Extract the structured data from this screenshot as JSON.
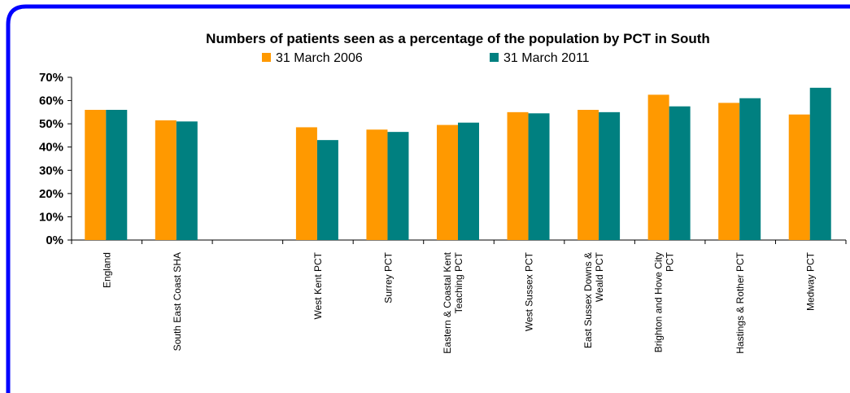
{
  "chart_data": {
    "type": "bar",
    "title": "Numbers of patients seen as a percentage of the population by PCT in South",
    "categories": [
      "England",
      "South East Coast SHA",
      null,
      "West Kent PCT",
      "Surrey PCT",
      "Eastern & Coastal Kent\nTeaching PCT",
      "West Sussex PCT",
      "East Sussex Downs &\nWeald PCT",
      "Brighton and Hove City\nPCT",
      "Hastings & Rother PCT",
      "Medway PCT"
    ],
    "series": [
      {
        "name": "31 March 2006",
        "color": "#ff9900",
        "values": [
          56,
          51.5,
          null,
          48.5,
          47.5,
          49.5,
          55,
          56,
          62.5,
          59,
          54
        ]
      },
      {
        "name": "31 March 2011",
        "color": "#008080",
        "values": [
          56,
          51,
          null,
          43,
          46.5,
          50.5,
          54.5,
          55,
          57.5,
          61,
          65.5
        ]
      }
    ],
    "ylim": [
      0,
      70
    ],
    "yticks": [
      {
        "value": 0,
        "label": "0%"
      },
      {
        "value": 10,
        "label": "10%"
      },
      {
        "value": 20,
        "label": "20%"
      },
      {
        "value": 30,
        "label": "30%"
      },
      {
        "value": 40,
        "label": "40%"
      },
      {
        "value": 50,
        "label": "50%"
      },
      {
        "value": 60,
        "label": "60%"
      },
      {
        "value": 70,
        "label": "70%"
      }
    ],
    "legend": "top"
  }
}
